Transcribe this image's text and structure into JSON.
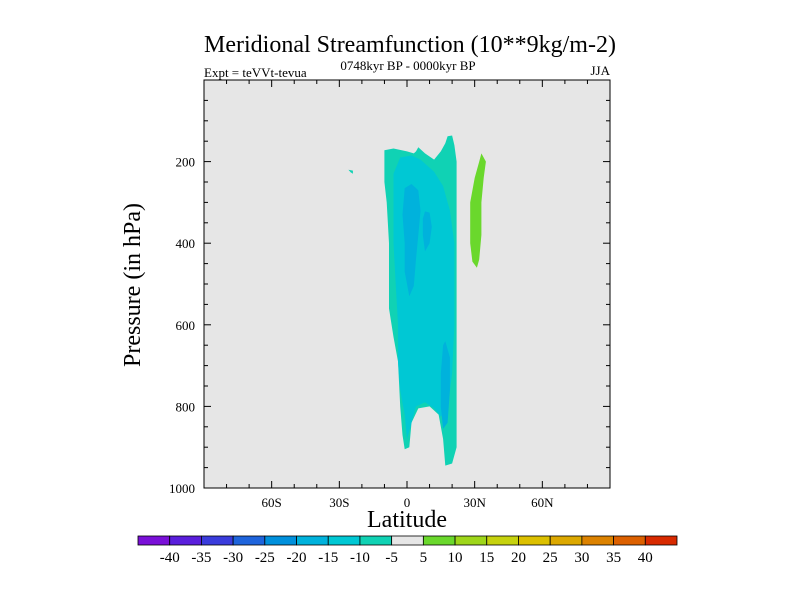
{
  "chart_data": {
    "type": "contour",
    "title": "Meridional Streamfunction (10**9kg/m-2)",
    "subtitle_left": "Expt = teVVt-tevua",
    "subtitle_center": "0748kyr BP - 0000kyr BP",
    "subtitle_right": "JJA",
    "xlabel": "Latitude",
    "ylabel": "Pressure (in hPa)",
    "xlim": [
      -90,
      90
    ],
    "ylim": [
      1000,
      0
    ],
    "x_ticks": [
      {
        "value": -60,
        "label": "60S"
      },
      {
        "value": -30,
        "label": "30S"
      },
      {
        "value": 0,
        "label": "0"
      },
      {
        "value": 30,
        "label": "30N"
      },
      {
        "value": 60,
        "label": "60N"
      }
    ],
    "y_ticks": [
      {
        "value": 200,
        "label": "200"
      },
      {
        "value": 400,
        "label": "400"
      },
      {
        "value": 600,
        "label": "600"
      },
      {
        "value": 800,
        "label": "800"
      },
      {
        "value": 1000,
        "label": "1000"
      }
    ],
    "background_color": "#e6e6e6",
    "regions": [
      {
        "level": -10,
        "color": "#10d2b4",
        "polygon": [
          [
            -10,
            172
          ],
          [
            -6,
            168
          ],
          [
            0,
            175
          ],
          [
            3,
            180
          ],
          [
            4,
            175
          ],
          [
            5,
            165
          ],
          [
            8,
            180
          ],
          [
            12,
            195
          ],
          [
            15,
            175
          ],
          [
            17,
            155
          ],
          [
            18,
            138
          ],
          [
            20,
            136
          ],
          [
            21,
            160
          ],
          [
            22,
            200
          ],
          [
            22,
            300
          ],
          [
            22,
            400
          ],
          [
            22,
            600
          ],
          [
            22,
            800
          ],
          [
            22,
            900
          ],
          [
            20,
            940
          ],
          [
            17,
            945
          ],
          [
            16,
            880
          ],
          [
            14,
            820
          ],
          [
            10,
            800
          ],
          [
            5,
            805
          ],
          [
            2,
            840
          ],
          [
            1,
            900
          ],
          [
            -1,
            905
          ],
          [
            -2,
            870
          ],
          [
            -3,
            800
          ],
          [
            -4,
            690
          ],
          [
            -6,
            630
          ],
          [
            -8,
            560
          ],
          [
            -8,
            450
          ],
          [
            -8,
            400
          ],
          [
            -9,
            300
          ],
          [
            -10,
            250
          ]
        ]
      },
      {
        "level": -10,
        "color": "#10d2b4",
        "polygon": [
          [
            -26,
            220
          ],
          [
            -24,
            222
          ],
          [
            -24,
            230
          ],
          [
            -25,
            226
          ]
        ]
      },
      {
        "level": -15,
        "color": "#00c8d4",
        "polygon": [
          [
            -6,
            230
          ],
          [
            -3,
            190
          ],
          [
            2,
            185
          ],
          [
            6,
            195
          ],
          [
            12,
            225
          ],
          [
            16,
            260
          ],
          [
            19,
            320
          ],
          [
            21,
            400
          ],
          [
            21,
            600
          ],
          [
            20,
            720
          ],
          [
            18,
            800
          ],
          [
            15,
            825
          ],
          [
            12,
            805
          ],
          [
            8,
            790
          ],
          [
            4,
            800
          ],
          [
            1,
            860
          ],
          [
            0,
            880
          ],
          [
            -1,
            820
          ],
          [
            -3,
            760
          ],
          [
            -4,
            690
          ],
          [
            -4,
            600
          ],
          [
            -5,
            500
          ],
          [
            -6,
            400
          ],
          [
            -6,
            300
          ]
        ]
      },
      {
        "level": -20,
        "color": "#00b2dc",
        "polygon": [
          [
            -1,
            265
          ],
          [
            2,
            255
          ],
          [
            5,
            270
          ],
          [
            6,
            320
          ],
          [
            5,
            380
          ],
          [
            4,
            440
          ],
          [
            3,
            505
          ],
          [
            1,
            530
          ],
          [
            -1,
            470
          ],
          [
            -1,
            400
          ],
          [
            -2,
            330
          ]
        ]
      },
      {
        "level": -20,
        "color": "#00b2dc",
        "polygon": [
          [
            8,
            322
          ],
          [
            10,
            325
          ],
          [
            11,
            360
          ],
          [
            10,
            400
          ],
          [
            8,
            420
          ],
          [
            7,
            380
          ],
          [
            7,
            340
          ]
        ]
      },
      {
        "level": -20,
        "color": "#00b2dc",
        "polygon": [
          [
            16,
            650
          ],
          [
            17,
            640
          ],
          [
            19,
            680
          ],
          [
            19,
            760
          ],
          [
            18,
            840
          ],
          [
            16,
            855
          ],
          [
            15,
            800
          ],
          [
            15,
            720
          ]
        ]
      },
      {
        "level": 5,
        "color": "#6ad82c",
        "polygon": [
          [
            33,
            180
          ],
          [
            35,
            200
          ],
          [
            34,
            240
          ],
          [
            33,
            300
          ],
          [
            33,
            380
          ],
          [
            32,
            440
          ],
          [
            31,
            460
          ],
          [
            29,
            445
          ],
          [
            28,
            400
          ],
          [
            28,
            300
          ],
          [
            30,
            240
          ],
          [
            32,
            200
          ]
        ]
      }
    ],
    "colorbar": {
      "levels": [
        -40,
        -35,
        -30,
        -25,
        -20,
        -15,
        -10,
        -5,
        5,
        10,
        15,
        20,
        25,
        30,
        35,
        40
      ],
      "colors": [
        "#7a10d8",
        "#5a1edc",
        "#3a3cdc",
        "#1e64dc",
        "#0090dc",
        "#00b2dc",
        "#00c8d4",
        "#10d2b4",
        "#e6e6e6",
        "#6ad82c",
        "#9ed61a",
        "#c6d20e",
        "#dcc000",
        "#dca800",
        "#dc8200",
        "#dc6000",
        "#d82a00"
      ]
    }
  }
}
